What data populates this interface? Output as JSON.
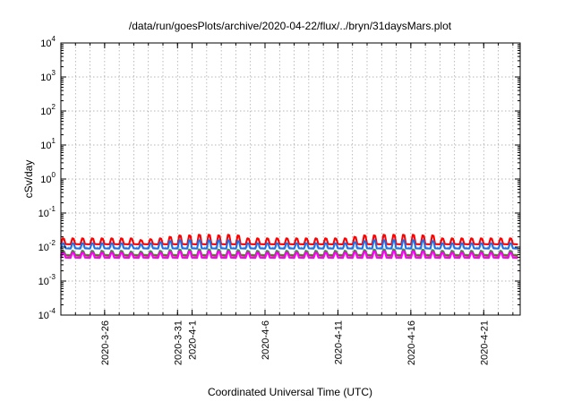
{
  "chart_data": {
    "type": "line",
    "title": "/data/run/goesPlots/archive/2020-04-22/flux/../bryn/31daysMars.plot",
    "xlabel": "Coordinated Universal Time (UTC)",
    "ylabel": "cSv/day",
    "yscale": "log",
    "ylim": [
      0.0001,
      10000
    ],
    "y_tick_base": "10",
    "y_tick_exponents": [
      "-4",
      "-3",
      "-2",
      "-1",
      "0",
      "1",
      "2",
      "3",
      "4"
    ],
    "xlim": [
      "2020-03-23",
      "2020-04-23T12:00"
    ],
    "x_tick_labels": [
      "2020-3-26",
      "2020-3-31",
      "2020-4-1",
      "2020-4-6",
      "2020-4-11",
      "2020-4-16",
      "2020-4-21"
    ],
    "x_tick_dates": [
      "2020-03-26",
      "2020-03-31",
      "2020-04-01",
      "2020-04-06",
      "2020-04-11",
      "2020-04-16",
      "2020-04-21"
    ],
    "grid": true,
    "legend": "none",
    "x_start": "2020-03-23",
    "x_end": "2020-04-23T12:00",
    "cycle_days": 0.667,
    "series": [
      {
        "color": "#ff0000",
        "baseline": 0.012,
        "peaks": [
          0.018,
          0.018,
          0.018,
          0.018,
          0.018,
          0.018,
          0.018,
          0.018,
          0.016,
          0.017,
          0.018,
          0.02,
          0.022,
          0.022,
          0.023,
          0.023,
          0.022,
          0.023,
          0.022,
          0.018,
          0.018,
          0.018,
          0.018,
          0.018,
          0.018,
          0.018,
          0.018,
          0.018,
          0.018,
          0.018,
          0.02,
          0.022,
          0.022,
          0.023,
          0.023,
          0.023,
          0.023,
          0.022,
          0.022,
          0.018,
          0.018,
          0.018,
          0.018,
          0.018,
          0.018,
          0.018,
          0.018
        ]
      },
      {
        "color": "#1f6fe6",
        "baseline": 0.009,
        "peaks": [
          0.013,
          0.013,
          0.013,
          0.013,
          0.013,
          0.013,
          0.013,
          0.012,
          0.012,
          0.013,
          0.014,
          0.015,
          0.016,
          0.016,
          0.016,
          0.016,
          0.016,
          0.016,
          0.015,
          0.013,
          0.013,
          0.013,
          0.013,
          0.013,
          0.013,
          0.013,
          0.013,
          0.013,
          0.013,
          0.013,
          0.014,
          0.015,
          0.016,
          0.016,
          0.016,
          0.016,
          0.016,
          0.016,
          0.015,
          0.013,
          0.013,
          0.013,
          0.013,
          0.013,
          0.013,
          0.013,
          0.013
        ]
      },
      {
        "color": "#2fa36b",
        "baseline": 0.0058,
        "peaks": [
          0.0078,
          0.0078,
          0.0078,
          0.0078,
          0.0078,
          0.0078,
          0.0078,
          0.0074,
          0.0074,
          0.0076,
          0.0078,
          0.0082,
          0.0085,
          0.0085,
          0.0086,
          0.0086,
          0.0085,
          0.0085,
          0.0082,
          0.0078,
          0.0078,
          0.0078,
          0.0078,
          0.0078,
          0.0078,
          0.0078,
          0.0078,
          0.0078,
          0.0078,
          0.0078,
          0.008,
          0.0082,
          0.0085,
          0.0086,
          0.0086,
          0.0086,
          0.0086,
          0.0085,
          0.0082,
          0.0078,
          0.0078,
          0.0078,
          0.0078,
          0.0078,
          0.0078,
          0.0078,
          0.0078
        ]
      },
      {
        "color": "#8b5a2b",
        "baseline": 0.0055,
        "peaks": [
          0.0072,
          0.0072,
          0.0072,
          0.0072,
          0.0072,
          0.0072,
          0.0072,
          0.0069,
          0.0069,
          0.007,
          0.0072,
          0.0075,
          0.0078,
          0.0078,
          0.0079,
          0.0079,
          0.0078,
          0.0078,
          0.0075,
          0.0072,
          0.0072,
          0.0072,
          0.0072,
          0.0072,
          0.0072,
          0.0072,
          0.0072,
          0.0072,
          0.0072,
          0.0072,
          0.0074,
          0.0076,
          0.0078,
          0.0079,
          0.0079,
          0.0079,
          0.0079,
          0.0078,
          0.0075,
          0.0072,
          0.0072,
          0.0072,
          0.0072,
          0.0072,
          0.0072,
          0.0072,
          0.0072
        ]
      },
      {
        "color": "#ff00ff",
        "baseline": 0.0048,
        "peaks": [
          0.0068,
          0.0068,
          0.0068,
          0.0068,
          0.0068,
          0.0068,
          0.0068,
          0.0065,
          0.0065,
          0.0066,
          0.0068,
          0.0071,
          0.0074,
          0.0074,
          0.0075,
          0.0075,
          0.0074,
          0.0074,
          0.0071,
          0.0068,
          0.0068,
          0.0068,
          0.0068,
          0.0068,
          0.0068,
          0.0068,
          0.0068,
          0.0068,
          0.0068,
          0.0068,
          0.007,
          0.0072,
          0.0074,
          0.0075,
          0.0075,
          0.0075,
          0.0075,
          0.0074,
          0.0071,
          0.0068,
          0.0068,
          0.0068,
          0.0068,
          0.0068,
          0.0068,
          0.0068,
          0.0068
        ]
      }
    ]
  }
}
